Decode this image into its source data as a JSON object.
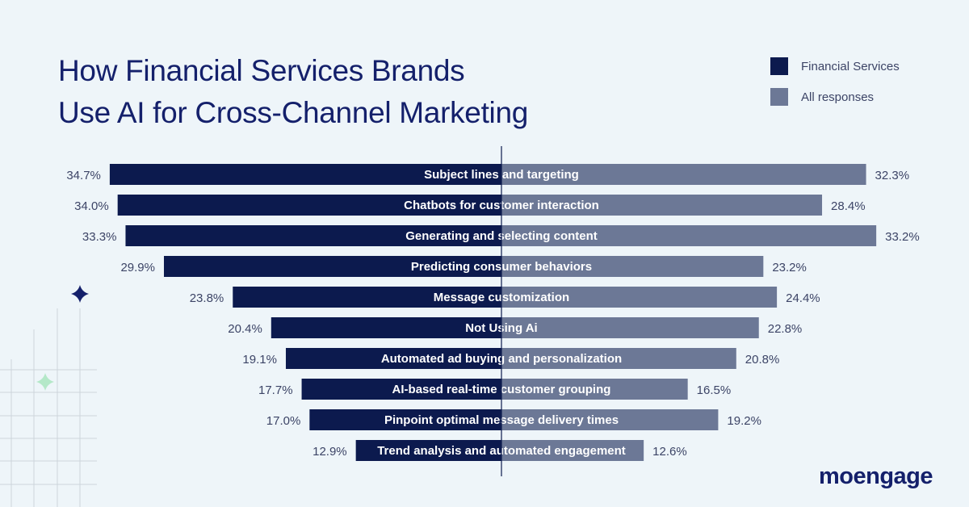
{
  "title_line1": "How Financial Services Brands",
  "title_line2": "Use AI for Cross-Channel Marketing",
  "logo": "moengage",
  "chart_data": {
    "type": "bar",
    "orientation": "horizontal-diverging",
    "categories": [
      "Subject lines and targeting",
      "Chatbots for customer interaction",
      "Generating and selecting content",
      "Predicting consumer behaviors",
      "Message customization",
      "Not Using Ai",
      "Automated ad buying and personalization",
      "AI-based real-time customer grouping",
      "Pinpoint optimal message delivery times",
      "Trend analysis and automated engagement"
    ],
    "series": [
      {
        "name": "Financial Services",
        "color": "#0c1a4e",
        "side": "left",
        "values": [
          34.7,
          34.0,
          33.3,
          29.9,
          23.8,
          20.4,
          19.1,
          17.7,
          17.0,
          12.9
        ]
      },
      {
        "name": "All responses",
        "color": "#6c7896",
        "side": "right",
        "values": [
          32.3,
          28.4,
          33.2,
          23.2,
          24.4,
          22.8,
          20.8,
          16.5,
          19.2,
          12.6
        ]
      }
    ],
    "unit": "%",
    "legend_position": "top-right",
    "grid": false
  }
}
